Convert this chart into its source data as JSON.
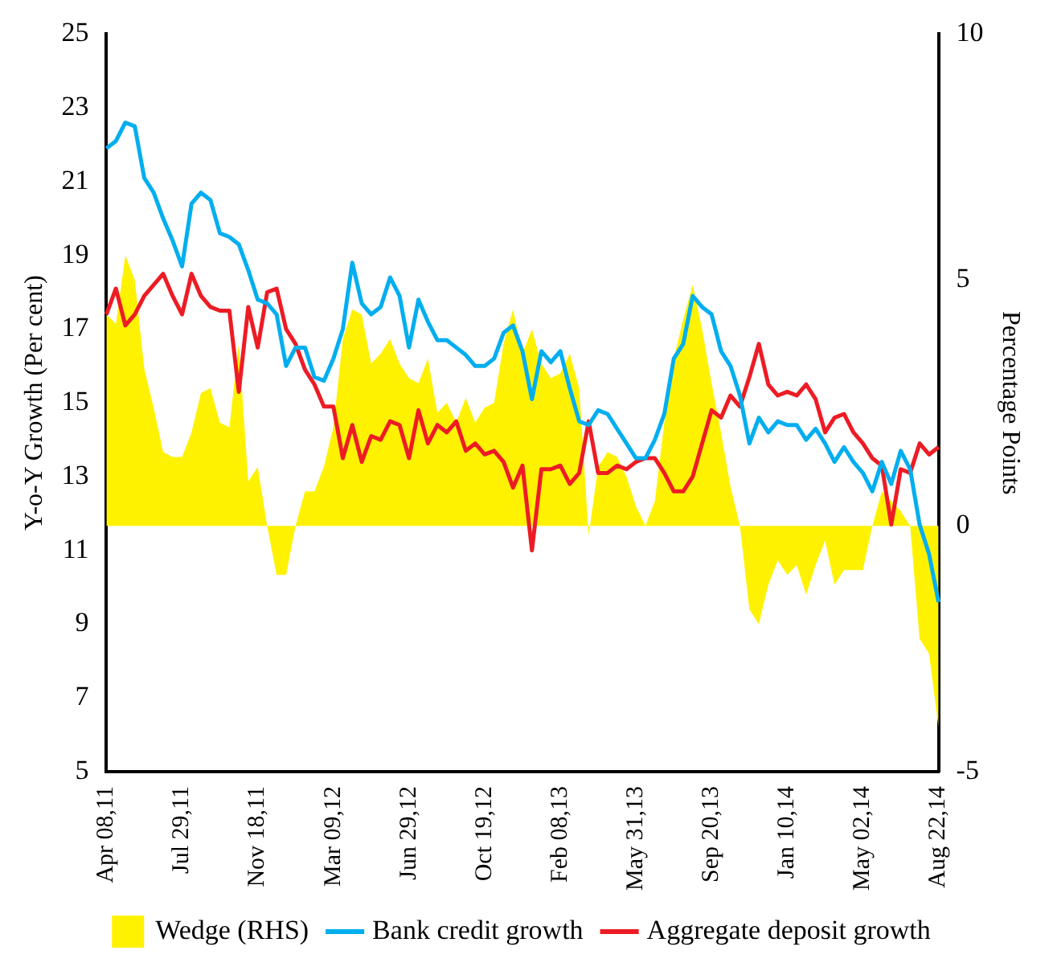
{
  "chart_data": {
    "type": "line",
    "ylabel": "Y-o-Y Growth (Per cent)",
    "y2label": "Percentage Points",
    "categories": [
      "Apr 08,11",
      null,
      null,
      null,
      null,
      null,
      null,
      null,
      "Jul 29,11",
      null,
      null,
      null,
      null,
      null,
      null,
      null,
      "Nov 18,11",
      null,
      null,
      null,
      null,
      null,
      null,
      null,
      "Mar 09,12",
      null,
      null,
      null,
      null,
      null,
      null,
      null,
      "Jun 29,12",
      null,
      null,
      null,
      null,
      null,
      null,
      null,
      "Oct 19,12",
      null,
      null,
      null,
      null,
      null,
      null,
      null,
      "Feb 08,13",
      null,
      null,
      null,
      null,
      null,
      null,
      null,
      "May 31,13",
      null,
      null,
      null,
      null,
      null,
      null,
      null,
      "Sep 20,13",
      null,
      null,
      null,
      null,
      null,
      null,
      null,
      "Jan 10,14",
      null,
      null,
      null,
      null,
      null,
      null,
      null,
      "May 02,14",
      null,
      null,
      null,
      null,
      null,
      null,
      null,
      "Aug 22,14"
    ],
    "series": [
      {
        "name": "Wedge (RHS)",
        "type": "area",
        "axis": "y2",
        "color": "#fff200",
        "values": [
          4.3,
          4.1,
          5.5,
          5.0,
          3.2,
          2.4,
          1.5,
          1.4,
          1.4,
          1.9,
          2.7,
          2.8,
          2.1,
          2.0,
          3.7,
          0.9,
          1.2,
          0,
          -1.0,
          -1.0,
          0,
          0.7,
          0.7,
          1.2,
          2.0,
          3.8,
          4.4,
          4.3,
          3.3,
          3.5,
          3.8,
          3.3,
          3.0,
          2.9,
          3.4,
          2.3,
          2.5,
          2.1,
          2.6,
          2.1,
          2.4,
          2.5,
          3.7,
          4.4,
          3.5,
          4.0,
          3.3,
          3.0,
          3.1,
          3.5,
          2.8,
          -0.2,
          1.2,
          1.5,
          1.4,
          1.0,
          0.4,
          0,
          0.5,
          2.1,
          3.4,
          4.2,
          4.9,
          4.0,
          2.9,
          1.9,
          0.8,
          0,
          -1.7,
          -2.0,
          -1.2,
          -0.7,
          -1.0,
          -0.8,
          -1.4,
          -0.8,
          -0.3,
          -1.2,
          -0.9,
          -0.9,
          -0.9,
          0,
          0.7,
          0.5,
          0.3,
          0,
          -2.3,
          -2.6,
          -4.1
        ]
      },
      {
        "name": "Bank credit growth",
        "color": "#00aeef",
        "values": [
          21.9,
          22.1,
          22.6,
          22.5,
          21.1,
          20.7,
          20.0,
          19.4,
          18.7,
          20.4,
          20.7,
          20.5,
          19.6,
          19.5,
          19.3,
          18.6,
          17.8,
          17.7,
          17.4,
          16.0,
          16.5,
          16.5,
          15.7,
          15.6,
          16.2,
          17.0,
          18.8,
          17.7,
          17.4,
          17.6,
          18.4,
          17.9,
          16.5,
          17.8,
          17.2,
          16.7,
          16.7,
          16.5,
          16.3,
          16.0,
          16.0,
          16.2,
          16.9,
          17.1,
          16.4,
          15.1,
          16.4,
          16.1,
          16.4,
          15.4,
          14.5,
          14.4,
          14.8,
          14.7,
          14.3,
          13.9,
          13.5,
          13.5,
          14.0,
          14.7,
          16.2,
          16.6,
          17.9,
          17.6,
          17.4,
          16.4,
          16.0,
          15.2,
          13.9,
          14.6,
          14.2,
          14.5,
          14.4,
          14.4,
          14.0,
          14.3,
          13.9,
          13.4,
          13.8,
          13.4,
          13.1,
          12.6,
          13.4,
          12.8,
          13.7,
          13.2,
          11.7,
          10.9,
          9.6
        ]
      },
      {
        "name": "Aggregate deposit growth",
        "color": "#ed1c24",
        "values": [
          17.4,
          18.1,
          17.1,
          17.4,
          17.9,
          18.2,
          18.5,
          17.9,
          17.4,
          18.5,
          17.9,
          17.6,
          17.5,
          17.5,
          15.3,
          17.6,
          16.5,
          18.0,
          18.1,
          17.0,
          16.6,
          15.9,
          15.5,
          14.9,
          14.9,
          13.5,
          14.4,
          13.4,
          14.1,
          14.0,
          14.5,
          14.4,
          13.5,
          14.8,
          13.9,
          14.4,
          14.2,
          14.5,
          13.7,
          13.9,
          13.6,
          13.7,
          13.4,
          12.7,
          13.3,
          11.0,
          13.2,
          13.2,
          13.3,
          12.8,
          13.1,
          14.5,
          13.1,
          13.1,
          13.3,
          13.2,
          13.4,
          13.5,
          13.5,
          13.1,
          12.6,
          12.6,
          13.0,
          13.9,
          14.8,
          14.6,
          15.2,
          14.9,
          15.7,
          16.6,
          15.5,
          15.2,
          15.3,
          15.2,
          15.5,
          15.1,
          14.2,
          14.6,
          14.7,
          14.2,
          13.9,
          13.5,
          13.3,
          11.7,
          13.2,
          13.1,
          13.9,
          13.6,
          13.8
        ]
      }
    ],
    "ylim": [
      5,
      25
    ],
    "yticks": [
      5,
      7,
      9,
      11,
      13,
      15,
      17,
      19,
      21,
      23,
      25
    ],
    "y2lim": [
      -5,
      10
    ],
    "y2ticks": [
      -5,
      0,
      5,
      10
    ],
    "grid": false,
    "legend": "bottom",
    "marker": "none",
    "line_style": "solid"
  }
}
